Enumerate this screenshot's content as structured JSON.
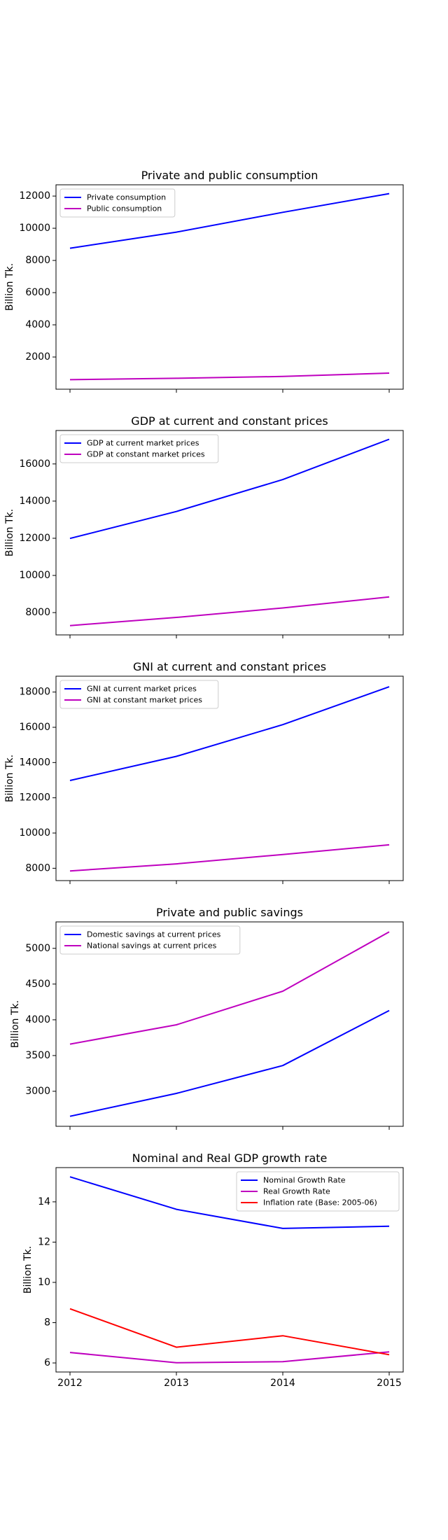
{
  "colors": {
    "blue": "#0000ff",
    "magenta": "#bf00bf",
    "red": "#ff0000"
  },
  "chart_data": [
    {
      "type": "line",
      "title": "Private and public consumption",
      "ylabel": "Billion Tk.",
      "x": [
        2012,
        2013,
        2014,
        2015
      ],
      "ylim": [
        0,
        12700
      ],
      "yticks": [
        2000,
        4000,
        6000,
        8000,
        10000,
        12000
      ],
      "show_xticklabels": false,
      "legend": "top-left",
      "series": [
        {
          "name": "Private consumption",
          "color": "#0000ff",
          "values": [
            8760,
            9760,
            10990,
            12150
          ]
        },
        {
          "name": "Public consumption",
          "color": "#bf00bf",
          "values": [
            590,
            680,
            790,
            1000
          ]
        }
      ]
    },
    {
      "type": "line",
      "title": "GDP at current and constant prices",
      "ylabel": "Billion Tk.",
      "x": [
        2012,
        2013,
        2014,
        2015
      ],
      "ylim": [
        6800,
        17800
      ],
      "yticks": [
        8000,
        10000,
        12000,
        14000,
        16000
      ],
      "show_xticklabels": false,
      "legend": "top-left",
      "series": [
        {
          "name": "GDP at current market prices",
          "color": "#0000ff",
          "values": [
            11990,
            13440,
            15160,
            17330
          ]
        },
        {
          "name": "GDP at constant market prices",
          "color": "#bf00bf",
          "values": [
            7300,
            7740,
            8250,
            8840
          ]
        }
      ]
    },
    {
      "type": "line",
      "title": "GNI at current and constant prices",
      "ylabel": "Billion Tk.",
      "x": [
        2012,
        2013,
        2014,
        2015
      ],
      "ylim": [
        7300,
        18900
      ],
      "yticks": [
        8000,
        10000,
        12000,
        14000,
        16000,
        18000
      ],
      "show_xticklabels": false,
      "legend": "top-left",
      "series": [
        {
          "name": "GNI at current market prices",
          "color": "#0000ff",
          "values": [
            12980,
            14350,
            16150,
            18300
          ]
        },
        {
          "name": "GNI at constant market prices",
          "color": "#bf00bf",
          "values": [
            7850,
            8250,
            8780,
            9330
          ]
        }
      ]
    },
    {
      "type": "line",
      "title": "Private and public savings",
      "ylabel": "Billion Tk.",
      "x": [
        2012,
        2013,
        2014,
        2015
      ],
      "ylim": [
        2510,
        5370
      ],
      "yticks": [
        3000,
        3500,
        4000,
        4500,
        5000
      ],
      "show_xticklabels": false,
      "legend": "top-left",
      "series": [
        {
          "name": "Domestic savings at current prices",
          "color": "#0000ff",
          "values": [
            2650,
            2970,
            3360,
            4130
          ]
        },
        {
          "name": "National savings at current prices",
          "color": "#bf00bf",
          "values": [
            3660,
            3930,
            4400,
            5230
          ]
        }
      ]
    },
    {
      "type": "line",
      "title": "Nominal and Real GDP growth rate",
      "ylabel": "Billion Tk.",
      "x": [
        2012,
        2013,
        2014,
        2015
      ],
      "ylim": [
        5.55,
        15.7
      ],
      "yticks": [
        6,
        8,
        10,
        12,
        14
      ],
      "show_xticklabels": true,
      "legend": "top-right",
      "series": [
        {
          "name": "Nominal Growth Rate",
          "color": "#0000ff",
          "values": [
            15.24,
            13.63,
            12.68,
            12.79
          ]
        },
        {
          "name": "Real Growth Rate",
          "color": "#bf00bf",
          "values": [
            6.52,
            6.01,
            6.06,
            6.55
          ]
        },
        {
          "name": "Inflation rate (Base: 2005-06)",
          "color": "#ff0000",
          "values": [
            8.69,
            6.78,
            7.35,
            6.41
          ]
        }
      ]
    }
  ]
}
